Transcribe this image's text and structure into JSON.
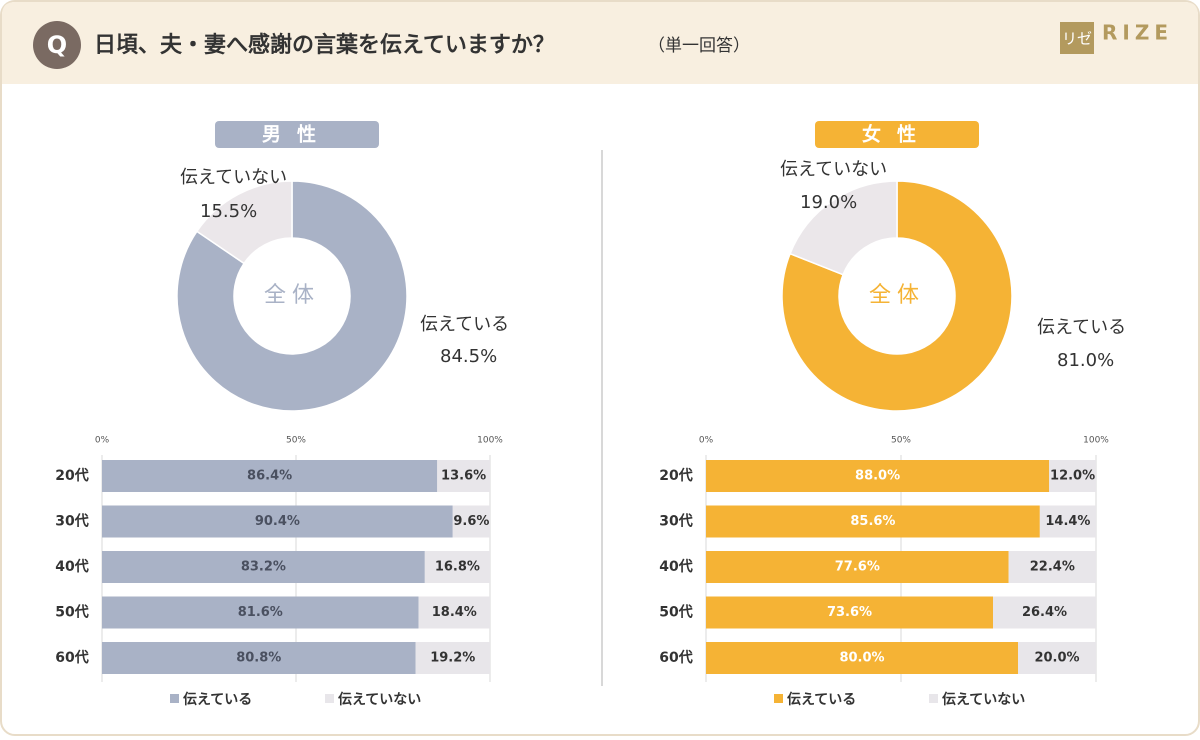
{
  "header": {
    "badge": "Q",
    "title": "日頃、夫・妻へ感謝の言葉を伝えていますか？",
    "note": "（単一回答）",
    "logo_mark": "リゼ",
    "logo_text": "RIZE"
  },
  "chart_data": [
    {
      "type": "pie",
      "title": "男性",
      "center_label": "全体",
      "categories": [
        "伝えている",
        "伝えていない"
      ],
      "values": [
        84.5,
        15.5
      ],
      "value_labels": [
        "84.5%",
        "15.5%"
      ],
      "colors": [
        "#a9b2c6",
        "#ebe7ea"
      ],
      "title_color": "#a9b2c6"
    },
    {
      "type": "pie",
      "title": "女性",
      "center_label": "全体",
      "categories": [
        "伝えている",
        "伝えていない"
      ],
      "values": [
        81.0,
        19.0
      ],
      "value_labels": [
        "81.0%",
        "19.0%"
      ],
      "colors": [
        "#f5b335",
        "#ebe7ea"
      ],
      "title_color": "#f5b335"
    },
    {
      "type": "bar",
      "orientation": "horizontal",
      "stacked": true,
      "categories": [
        "20代",
        "30代",
        "40代",
        "50代",
        "60代"
      ],
      "series": [
        {
          "name": "伝えている",
          "color": "#a9b2c6",
          "values": [
            86.4,
            90.4,
            83.2,
            81.6,
            80.8
          ],
          "value_labels": [
            "86.4%",
            "90.4%",
            "83.2%",
            "81.6%",
            "80.8%"
          ],
          "label_color": "#4a5060"
        },
        {
          "name": "伝えていない",
          "color": "#e8e6ea",
          "values": [
            13.6,
            9.6,
            16.8,
            18.4,
            19.2
          ],
          "value_labels": [
            "13.6%",
            "9.6%",
            "16.8%",
            "18.4%",
            "19.2%"
          ],
          "label_color": "#333333"
        }
      ],
      "xlim": [
        0,
        100
      ],
      "xticks": [
        {
          "value": 0,
          "label": "0%"
        },
        {
          "value": 50,
          "label": "50%"
        },
        {
          "value": 100,
          "label": "100%"
        }
      ],
      "grid": true
    },
    {
      "type": "bar",
      "orientation": "horizontal",
      "stacked": true,
      "categories": [
        "20代",
        "30代",
        "40代",
        "50代",
        "60代"
      ],
      "series": [
        {
          "name": "伝えている",
          "color": "#f5b335",
          "values": [
            88.0,
            85.6,
            77.6,
            73.6,
            80.0
          ],
          "value_labels": [
            "88.0%",
            "85.6%",
            "77.6%",
            "73.6%",
            "80.0%"
          ],
          "label_color": "#ffffff"
        },
        {
          "name": "伝えていない",
          "color": "#e8e6ea",
          "values": [
            12.0,
            14.4,
            22.4,
            26.4,
            20.0
          ],
          "value_labels": [
            "12.0%",
            "14.4%",
            "22.4%",
            "26.4%",
            "20.0%"
          ],
          "label_color": "#333333"
        }
      ],
      "xlim": [
        0,
        100
      ],
      "xticks": [
        {
          "value": 0,
          "label": "0%"
        },
        {
          "value": 50,
          "label": "50%"
        },
        {
          "value": 100,
          "label": "100%"
        }
      ],
      "grid": true
    }
  ]
}
